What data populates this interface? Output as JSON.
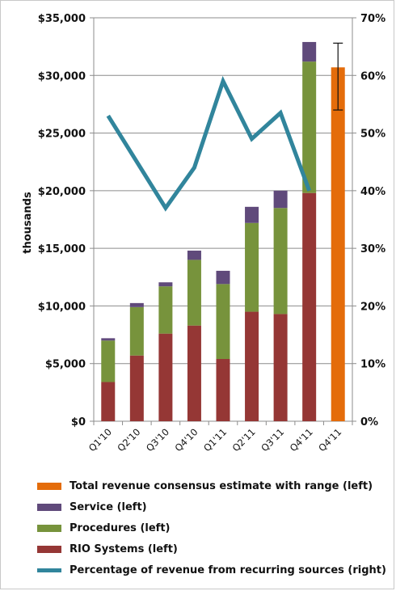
{
  "chart_data": {
    "type": "bar",
    "stacked": true,
    "categories": [
      "Q1'10",
      "Q2'10",
      "Q3'10",
      "Q4'10",
      "Q1'11",
      "Q2'11",
      "Q3'11",
      "Q4'11",
      "Q4'11"
    ],
    "series": [
      {
        "name": "RIO Systems (left)",
        "axis": "left",
        "color": "#953735",
        "values": [
          3400,
          5700,
          7600,
          8300,
          5400,
          9500,
          9300,
          19800,
          null
        ]
      },
      {
        "name": "Procedures (left)",
        "axis": "left",
        "color": "#77933c",
        "values": [
          3600,
          4200,
          4100,
          5700,
          6500,
          7700,
          9200,
          11400,
          null
        ]
      },
      {
        "name": "Service (left)",
        "axis": "left",
        "color": "#604a7b",
        "values": [
          200,
          350,
          350,
          800,
          1150,
          1400,
          1500,
          1700,
          null
        ]
      },
      {
        "name": "Total revenue consensus estimate with range (left)",
        "axis": "left",
        "color": "#e46c0a",
        "values": [
          null,
          null,
          null,
          null,
          null,
          null,
          null,
          null,
          30700
        ],
        "range_low": 27000,
        "range_high": 32800
      },
      {
        "name": "Percentage of revenue from recurring sources (right)",
        "axis": "right",
        "type": "line",
        "color": "#31859c",
        "values": [
          53,
          45,
          37,
          44,
          59,
          49,
          53.5,
          40,
          null
        ]
      }
    ],
    "ylabel": "thousands",
    "ylim": [
      0,
      35000
    ],
    "yticks": [
      0,
      5000,
      10000,
      15000,
      20000,
      25000,
      30000,
      35000
    ],
    "ytick_labels": [
      "$0",
      "$5,000",
      "$10,000",
      "$15,000",
      "$20,000",
      "$25,000",
      "$30,000",
      "$35,000"
    ],
    "y2lim": [
      0,
      70
    ],
    "y2ticks": [
      0,
      10,
      20,
      30,
      40,
      50,
      60,
      70
    ],
    "y2tick_labels": [
      "0%",
      "10%",
      "20%",
      "30%",
      "40%",
      "50%",
      "60%",
      "70%"
    ],
    "grid": true,
    "legend_position": "bottom",
    "legend_order": [
      "Total revenue consensus estimate with range (left)",
      "Service (left)",
      "Procedures (left)",
      "RIO Systems (left)",
      "Percentage of revenue from recurring sources (right)"
    ]
  }
}
